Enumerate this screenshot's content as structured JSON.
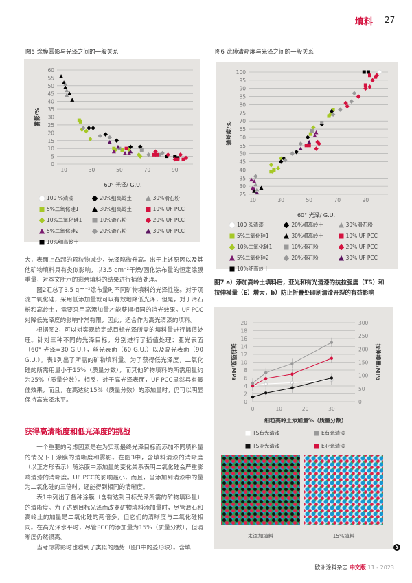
{
  "header": {
    "section": "填料",
    "page": "27"
  },
  "fig5": {
    "title": "图5 涂膜雾影与光泽之间的一般关系"
  },
  "fig6": {
    "title": "图6 涂膜清晰度与光泽之间的一般关系"
  },
  "fig7": {
    "title_line1": "图7 a）添加高岭土填料后，亚光和有光清漆的抗拉强度（TS）和",
    "title_line2": "拉伸模量（E）增大，b）防止折叠处印刷清漆开裂的有益影响",
    "photo_captions": [
      "未添加填料",
      "15%填料"
    ]
  },
  "legend": [
    {
      "label": "100 %清漆",
      "shape": "circle",
      "color": "#ffffff"
    },
    {
      "label": "20%细高岭土",
      "shape": "diamond",
      "color": "#000000"
    },
    {
      "label": "30%滑石粉",
      "shape": "triangle",
      "color": "#999999"
    },
    {
      "label": "5%二氧化硅1",
      "shape": "square",
      "color": "#a6c826"
    },
    {
      "label": "30%细高岭土",
      "shape": "triangle",
      "color": "#000000"
    },
    {
      "label": "10% UF PCC",
      "shape": "square",
      "color": "#d4123f"
    },
    {
      "label": "10%二氧化硅1",
      "shape": "diamond",
      "color": "#a6c826"
    },
    {
      "label": "10%滑石粉",
      "shape": "square",
      "color": "#999999"
    },
    {
      "label": "20% UF PCC",
      "shape": "diamond",
      "color": "#d4123f"
    },
    {
      "label": "5%二氧化硅2",
      "shape": "triangle",
      "color": "#7a1a6e"
    },
    {
      "label": "20%滑石粉",
      "shape": "diamond",
      "color": "#999999"
    },
    {
      "label": "30% UF PCC",
      "shape": "triangle",
      "color": "#5a1460"
    },
    {
      "label": "10%细高岭土",
      "shape": "square",
      "color": "#000000"
    }
  ],
  "chart_data": [
    {
      "type": "scatter",
      "xlabel": "60° 光泽/ G.U.",
      "ylabel": "雾影/%",
      "xlim": [
        5,
        100
      ],
      "ylim": [
        0,
        60
      ],
      "xticks": [
        10,
        30,
        50,
        70,
        90
      ],
      "yticks": [
        0,
        5,
        10,
        15,
        20,
        25,
        30,
        35,
        40,
        45,
        50,
        55,
        60
      ],
      "grid": "horizontal",
      "series": [
        {
          "legend_index": 0,
          "points": [
            [
              95,
              3
            ]
          ]
        },
        {
          "legend_index": 3,
          "points": [
            [
              21,
              28
            ],
            [
              22,
              27
            ],
            [
              46,
              10
            ],
            [
              52,
              9
            ]
          ]
        },
        {
          "legend_index": 6,
          "points": [
            [
              23,
              22
            ],
            [
              26,
              21
            ],
            [
              29,
              16
            ],
            [
              47,
              9
            ],
            [
              57,
              9
            ],
            [
              64,
              6
            ],
            [
              65,
              5
            ]
          ]
        },
        {
          "legend_index": 9,
          "points": [
            [
              46,
              8
            ],
            [
              54,
              7
            ],
            [
              57,
              7
            ]
          ]
        },
        {
          "legend_index": 12,
          "points": [
            [
              84,
              5
            ],
            [
              90,
              5
            ],
            [
              92,
              4
            ]
          ]
        },
        {
          "legend_index": 1,
          "points": [
            [
              28,
              23
            ],
            [
              31,
              23
            ],
            [
              40,
              19
            ],
            [
              48,
              15
            ],
            [
              58,
              11
            ],
            [
              65,
              11
            ]
          ]
        },
        {
          "legend_index": 4,
          "points": [
            [
              8,
              56
            ],
            [
              10,
              52
            ],
            [
              11,
              49
            ],
            [
              14,
              45
            ],
            [
              16,
              41
            ]
          ]
        },
        {
          "legend_index": 7,
          "points": [
            [
              50,
              10
            ],
            [
              66,
              9
            ],
            [
              79,
              6
            ]
          ]
        },
        {
          "legend_index": 10,
          "points": [
            [
              24,
              23
            ],
            [
              36,
              18
            ],
            [
              43,
              17
            ],
            [
              71,
              6
            ],
            [
              81,
              7
            ]
          ]
        },
        {
          "legend_index": 2,
          "points": [
            [
              11,
              51
            ],
            [
              12,
              47
            ],
            [
              12,
              44
            ]
          ]
        },
        {
          "legend_index": 5,
          "points": [
            [
              55,
              10
            ],
            [
              75,
              6
            ],
            [
              77,
              6
            ],
            [
              92,
              3
            ],
            [
              96,
              3
            ]
          ]
        },
        {
          "legend_index": 8,
          "points": [
            [
              76,
              8
            ],
            [
              85,
              6
            ],
            [
              90,
              3
            ],
            [
              94,
              6
            ],
            [
              98,
              4
            ]
          ]
        },
        {
          "legend_index": 11,
          "points": [
            [
              43,
              14
            ],
            [
              49,
              11
            ],
            [
              58,
              8
            ]
          ]
        }
      ]
    },
    {
      "type": "scatter",
      "xlabel": "60° 光泽/ G.U.",
      "ylabel": "清晰度/%",
      "xlim": [
        7,
        103
      ],
      "ylim": [
        25,
        100
      ],
      "xticks": [
        10,
        30,
        50,
        70,
        90
      ],
      "yticks": [
        25,
        30,
        35,
        40,
        45,
        50,
        55,
        60,
        65,
        70,
        75,
        80,
        85,
        90,
        95,
        100
      ],
      "grid": "horizontal",
      "series": [
        {
          "legend_index": 0,
          "points": [
            [
              100,
              100
            ]
          ]
        },
        {
          "legend_index": 3,
          "points": [
            [
              23,
              39
            ],
            [
              25,
              40
            ],
            [
              51,
              62
            ],
            [
              64,
              73
            ],
            [
              67,
              77
            ]
          ]
        },
        {
          "legend_index": 6,
          "points": [
            [
              23,
              43
            ],
            [
              24,
              39
            ],
            [
              28,
              41
            ],
            [
              30,
              47
            ],
            [
              53,
              66
            ],
            [
              65,
              74
            ]
          ]
        },
        {
          "legend_index": 9,
          "points": [
            [
              9,
              34
            ],
            [
              11,
              33
            ],
            [
              10,
              29
            ],
            [
              11,
              28
            ],
            [
              50,
              57
            ],
            [
              54,
              61
            ],
            [
              55,
              63
            ]
          ]
        },
        {
          "legend_index": 12,
          "points": [
            [
              89,
              100
            ],
            [
              92,
              100
            ]
          ]
        },
        {
          "legend_index": 1,
          "points": [
            [
              30,
              45
            ],
            [
              32,
              47
            ],
            [
              41,
              51
            ],
            [
              49,
              60
            ],
            [
              59,
              68
            ],
            [
              66,
              76
            ]
          ]
        },
        {
          "legend_index": 4,
          "points": [
            [
              11,
              27
            ],
            [
              16,
              29
            ]
          ]
        },
        {
          "legend_index": 7,
          "points": [
            [
              52,
              64
            ],
            [
              59,
              69
            ]
          ]
        },
        {
          "legend_index": 10,
          "points": [
            [
              12,
              36
            ],
            [
              33,
              46
            ],
            [
              38,
              50
            ],
            [
              44,
              56
            ],
            [
              67,
              74
            ],
            [
              72,
              77
            ],
            [
              80,
              82
            ],
            [
              82,
              87
            ]
          ]
        },
        {
          "legend_index": 2,
          "points": [
            [
              12,
              31
            ],
            [
              13,
              28
            ]
          ]
        },
        {
          "legend_index": 5,
          "points": [
            [
              48,
              55
            ],
            [
              50,
              55
            ],
            [
              90,
              92
            ],
            [
              93,
              98
            ],
            [
              97,
              97
            ]
          ]
        },
        {
          "legend_index": 8,
          "points": [
            [
              55,
              53
            ],
            [
              56,
              57
            ],
            [
              57,
              56
            ],
            [
              76,
              81
            ],
            [
              77,
              79
            ],
            [
              85,
              85
            ],
            [
              90,
              90
            ],
            [
              93,
              91
            ],
            [
              95,
              95
            ],
            [
              98,
              98
            ]
          ]
        },
        {
          "legend_index": 11,
          "points": [
            [
              13,
              26
            ],
            [
              44,
              53
            ],
            [
              50,
              57
            ]
          ]
        }
      ]
    },
    {
      "type": "line",
      "xlabel": "细粒高岭土添加量%（质量分数）",
      "ylabel": "抗拉强度/MPa",
      "ylabel_right": "拉伸模量/MPa",
      "xlim": [
        0,
        35
      ],
      "ylim": [
        0,
        20
      ],
      "ylim_right": [
        0,
        300
      ],
      "xticks": [
        0,
        10,
        20,
        30
      ],
      "yticks": [
        0,
        2,
        4,
        6,
        8,
        10,
        12,
        14,
        16,
        18,
        20
      ],
      "yticks_right": [
        0,
        50,
        100,
        150,
        200,
        250,
        300
      ],
      "x": [
        0,
        5,
        15,
        30
      ],
      "grid": "horizontal",
      "series": [
        {
          "name": "TS有光清漆",
          "axis": "left",
          "color": "#ffffff",
          "values": [
            4.0,
            4.5,
            4.8,
            5.5
          ]
        },
        {
          "name": "E有光清漆",
          "axis": "right",
          "color": "#999999",
          "values": [
            70,
            110,
            145,
            225
          ]
        },
        {
          "name": "TS亚光清漆",
          "axis": "left",
          "color": "#111111",
          "values": [
            1.2,
            2.2,
            3.5,
            6.0
          ]
        },
        {
          "name": "E亚光清漆",
          "axis": "right",
          "color": "#d4123f",
          "values": [
            60,
            88,
            105,
            165
          ]
        }
      ]
    }
  ],
  "body": {
    "p1": "大，表面上凸起的颗粒物减少，光泽略微升高。出于上述原因以及其他矿物填料具有类似影响，以3.5 gm⁻²干燥/固化涂布量的恒定涂膜重量，对本文所示的剩余填料的结果进行插值处理。",
    "p2": "图2汇总了3.5 gm⁻²涂布量时不同矿物填料的光泽性能。对于沉淀二氧化硅，采用低添加量就可以有效地降低光泽，但是，对于滑石粉和高岭土，需要采用高添加量才能获得相同的消光效果。UF PCC对降低光泽度的影响非常有限，因此，适合作为高光清漆的填料。",
    "p3": "根据图2，可以对实现给定或目标光泽所需的填料量进行插值处理。针对三种不同的光泽目标，分别进行了插值处理：亚光表面（60° 光泽=30 G.U.），丝光表面（60 G.U.）以及高光表面（90 G.U.）。表1列出了所需的矿物填料量。为了获得低光泽度，二氧化硅的所需用量小于15%（质量分数），而其他矿物填料的所需用量约为25%（质量分数）。相反，对于高光泽表面，UF PCC显然具有最佳效果，而且，在高达约15%（质量分数）的添加量时，仍可以明显保持高光泽水平。",
    "heading": "获得高清晰度和低光泽度的挑战",
    "p4": "一个重要的考虑因素是在为实现最终光泽目标而添加不同填料量的情况下干涂膜的清晰度和雾影。在图3中，含填料清漆的清晰度（以正方形表示）随涂膜中添加量的变化关系表明二氧化硅会严重影响清漆的清晰度。UF PCC的影响最小，而且，当添加到清漆中的量为二氧化硅的三倍时，还能得到相同的清晰度。",
    "p5": "表1中列出了各种涂膜（含有达到目标光泽所需的矿物填料量）的清晰度。为了达到目标光泽而改变矿物填料添加量时，尽管滑石和高岭土的加量是二氧化硅的两倍多，但它们的清晰度与二氧化硅相同。在高光泽水平时，尽管PCC的添加量为15%（质量分数），但清晰度仍然很高。",
    "p6": "当考虑雾影时也看到了类似的趋势（图3中的菱形块）。含填"
  },
  "footer": {
    "magazine": "欧洲涂料杂志",
    "edition": "中文版",
    "issue": "11 - 2023"
  },
  "icons": {
    "continue": "arrow-right-circle-icon"
  }
}
